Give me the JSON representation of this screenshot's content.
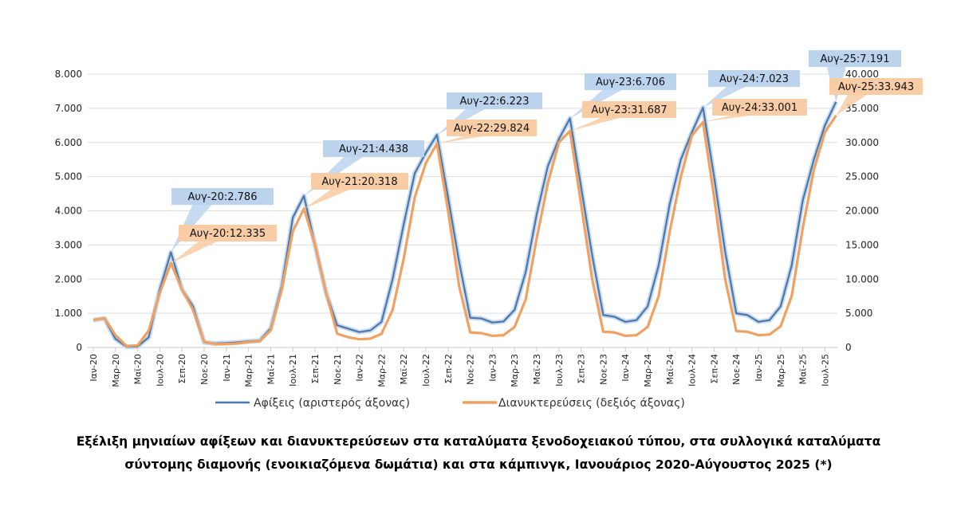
{
  "chart_data": {
    "type": "line",
    "title": "Εξέλιξη μηνιαίων αφίξεων και διανυκτερεύσεων στα καταλύματα ξενοδοχειακού τύπου, στα συλλογικά καταλύματα σύντομης διαμονής (ενοικιαζόμενα δωμάτια) και στα κάμπινγκ, Ιανουάριος 2020-Αύγουστος  2025 (*)",
    "title_lines": [
      "Εξέλιξη μηνιαίων αφίξεων και διανυκτερεύσεων στα καταλύματα ξενοδοχειακού τύπου, στα συλλογικά καταλύματα",
      "σύντομης διαμονής (ενοικιαζόμενα δωμάτια) και στα κάμπινγκ, Ιανουάριος 2020-Αύγουστος  2025 (*)"
    ],
    "x_range": [
      "Ιαν-20",
      "Αυγ-25"
    ],
    "x_tick_labels": [
      "Ιαν-20",
      "Μαρ-20",
      "Μαϊ-20",
      "Ιουλ-20",
      "Σεπ-20",
      "Νοε-20",
      "Ιαν-21",
      "Μαρ-21",
      "Μαϊ-21",
      "Ιουλ-21",
      "Σεπ-21",
      "Νοε-21",
      "Ιαν-22",
      "Μαρ-22",
      "Μαϊ-22",
      "Ιουλ-22",
      "Σεπ-22",
      "Νοε-22",
      "Ιαν-23",
      "Μαρ-23",
      "Μαϊ-23",
      "Ιουλ-23",
      "Σεπ-23",
      "Νοε-23",
      "Ιαν-24",
      "Μαρ-24",
      "Μαϊ-24",
      "Ιουλ-24",
      "Σεπ-24",
      "Νοε-24",
      "Ιαν-25",
      "Μαρ-25",
      "Μαϊ-25",
      "Ιουλ-25"
    ],
    "y_left": {
      "range": [
        0,
        8000
      ],
      "ticks": [
        "0",
        "1.000",
        "2.000",
        "3.000",
        "4.000",
        "5.000",
        "6.000",
        "7.000",
        "8.000"
      ]
    },
    "y_right": {
      "range": [
        0,
        40000
      ],
      "ticks": [
        "0",
        "5.000",
        "10.000",
        "15.000",
        "20.000",
        "25.000",
        "30.000",
        "35.000",
        "40.000"
      ]
    },
    "grid": true,
    "legend_position": "bottom",
    "series": [
      {
        "name": "Αφίξεις (αριστερός άξονας)",
        "axis": "left",
        "color": "#4a78aa",
        "values": [
          800,
          850,
          250,
          20,
          30,
          300,
          1700,
          2786,
          1700,
          1200,
          150,
          120,
          130,
          150,
          180,
          200,
          560,
          1800,
          3800,
          4438,
          3000,
          1600,
          650,
          550,
          450,
          500,
          750,
          2000,
          3600,
          5100,
          5700,
          6223,
          4400,
          2500,
          870,
          850,
          730,
          760,
          1100,
          2200,
          3900,
          5300,
          6100,
          6706,
          4700,
          2700,
          950,
          900,
          750,
          800,
          1200,
          2400,
          4200,
          5500,
          6300,
          7023,
          5000,
          2800,
          1000,
          950,
          750,
          800,
          1200,
          2400,
          4300,
          5500,
          6500,
          7191
        ]
      },
      {
        "name": "Διανυκτερεύσεις (δεξιός άξονας)",
        "axis": "right",
        "color": "#f0a060",
        "values": [
          4000,
          4300,
          1800,
          200,
          300,
          2500,
          8000,
          12335,
          8500,
          5500,
          800,
          500,
          500,
          600,
          800,
          900,
          2500,
          8500,
          17000,
          20318,
          15000,
          8000,
          2000,
          1500,
          1200,
          1300,
          2000,
          5500,
          13000,
          22000,
          27000,
          29824,
          20000,
          9000,
          2200,
          2100,
          1700,
          1800,
          3000,
          7000,
          16000,
          24000,
          30000,
          31687,
          21000,
          10000,
          2300,
          2200,
          1700,
          1800,
          3000,
          7500,
          17000,
          25000,
          31000,
          33001,
          22000,
          10000,
          2400,
          2300,
          1800,
          1900,
          3100,
          7500,
          17500,
          26000,
          31500,
          33943
        ]
      }
    ],
    "annotations": [
      {
        "series": 0,
        "month_index": 7,
        "text": "Αυγ-20:2.786"
      },
      {
        "series": 1,
        "month_index": 7,
        "text": "Αυγ-20:12.335"
      },
      {
        "series": 0,
        "month_index": 19,
        "text": "Αυγ-21:4.438"
      },
      {
        "series": 1,
        "month_index": 19,
        "text": "Αυγ-21:20.318"
      },
      {
        "series": 0,
        "month_index": 31,
        "text": "Αυγ-22:6.223"
      },
      {
        "series": 1,
        "month_index": 31,
        "text": "Αυγ-22:29.824"
      },
      {
        "series": 0,
        "month_index": 43,
        "text": "Αυγ-23:6.706"
      },
      {
        "series": 1,
        "month_index": 43,
        "text": "Αυγ-23:31.687"
      },
      {
        "series": 0,
        "month_index": 55,
        "text": "Αυγ-24:7.023"
      },
      {
        "series": 1,
        "month_index": 55,
        "text": "Αυγ-24:33.001"
      },
      {
        "series": 0,
        "month_index": 67,
        "text": "Αυγ-25:7.191"
      },
      {
        "series": 1,
        "month_index": 67,
        "text": "Αυγ-25:33.943"
      }
    ],
    "annotation_colors": [
      "#bcd3ee",
      "#f8cda6"
    ]
  }
}
